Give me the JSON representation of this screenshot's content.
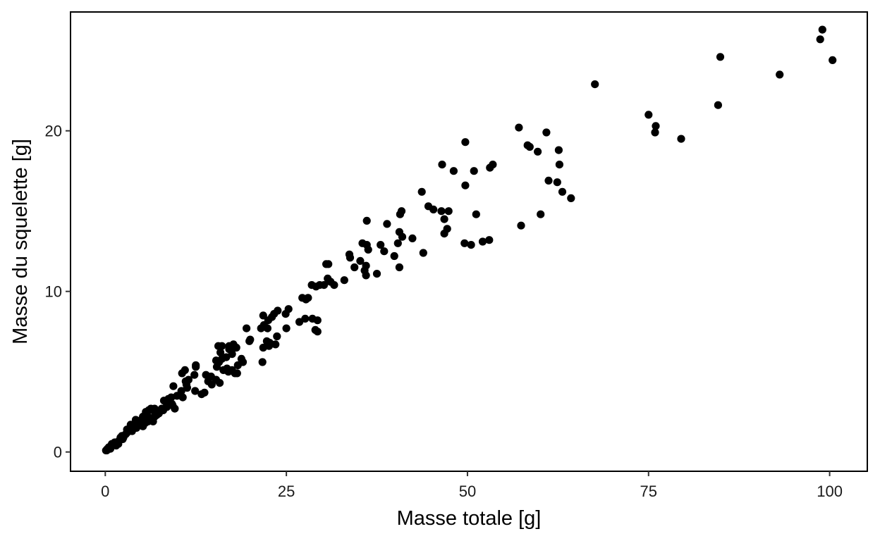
{
  "chart_data": {
    "type": "scatter",
    "title": "",
    "xlabel": "Masse totale [g]",
    "ylabel": "Masse du squelette [g]",
    "xlim": [
      -4.8,
      105.2
    ],
    "ylim": [
      -1.2,
      27.4
    ],
    "xticks": [
      0,
      25,
      50,
      75,
      100
    ],
    "yticks": [
      0,
      10,
      20
    ],
    "xtick_labels": [
      "0",
      "25",
      "50",
      "75",
      "100"
    ],
    "ytick_labels": [
      "0",
      "10",
      "20"
    ],
    "grid": false,
    "legend": "none",
    "point_color": "#000000",
    "points": [
      [
        99.0,
        26.3
      ],
      [
        98.7,
        25.7
      ],
      [
        100.4,
        24.4
      ],
      [
        84.9,
        24.6
      ],
      [
        93.1,
        23.5
      ],
      [
        84.6,
        21.6
      ],
      [
        67.6,
        22.9
      ],
      [
        75.0,
        21.0
      ],
      [
        76.0,
        20.3
      ],
      [
        75.9,
        19.9
      ],
      [
        79.5,
        19.5
      ],
      [
        57.1,
        20.2
      ],
      [
        60.9,
        19.9
      ],
      [
        58.3,
        19.1
      ],
      [
        58.6,
        19.0
      ],
      [
        59.7,
        18.7
      ],
      [
        62.6,
        18.8
      ],
      [
        62.7,
        17.9
      ],
      [
        61.2,
        16.9
      ],
      [
        62.4,
        16.8
      ],
      [
        63.1,
        16.2
      ],
      [
        64.3,
        15.8
      ],
      [
        60.1,
        14.8
      ],
      [
        57.4,
        14.1
      ],
      [
        49.7,
        19.3
      ],
      [
        46.5,
        17.9
      ],
      [
        48.1,
        17.5
      ],
      [
        50.9,
        17.5
      ],
      [
        53.1,
        17.7
      ],
      [
        53.5,
        17.9
      ],
      [
        49.7,
        16.6
      ],
      [
        43.7,
        16.2
      ],
      [
        44.6,
        15.3
      ],
      [
        45.3,
        15.1
      ],
      [
        46.4,
        15.0
      ],
      [
        47.4,
        15.0
      ],
      [
        51.2,
        14.8
      ],
      [
        46.8,
        14.5
      ],
      [
        47.2,
        13.9
      ],
      [
        46.8,
        13.6
      ],
      [
        49.6,
        13.0
      ],
      [
        50.5,
        12.9
      ],
      [
        52.1,
        13.1
      ],
      [
        53.0,
        13.2
      ],
      [
        43.9,
        12.4
      ],
      [
        40.9,
        15.0
      ],
      [
        40.7,
        14.8
      ],
      [
        38.9,
        14.2
      ],
      [
        40.6,
        13.7
      ],
      [
        41.0,
        13.4
      ],
      [
        40.4,
        13.0
      ],
      [
        42.4,
        13.3
      ],
      [
        40.6,
        11.5
      ],
      [
        39.9,
        12.2
      ],
      [
        38.0,
        12.9
      ],
      [
        38.5,
        12.5
      ],
      [
        36.1,
        14.4
      ],
      [
        35.5,
        13.0
      ],
      [
        36.1,
        12.9
      ],
      [
        36.3,
        12.6
      ],
      [
        35.2,
        11.9
      ],
      [
        34.4,
        11.5
      ],
      [
        36.0,
        11.6
      ],
      [
        35.8,
        11.3
      ],
      [
        36.0,
        11.0
      ],
      [
        37.5,
        11.1
      ],
      [
        33.7,
        12.3
      ],
      [
        33.8,
        12.1
      ],
      [
        33.0,
        10.7
      ],
      [
        30.5,
        11.7
      ],
      [
        30.8,
        11.7
      ],
      [
        30.7,
        10.8
      ],
      [
        30.2,
        10.4
      ],
      [
        31.1,
        10.6
      ],
      [
        31.6,
        10.4
      ],
      [
        29.6,
        10.4
      ],
      [
        29.1,
        10.3
      ],
      [
        28.5,
        10.4
      ],
      [
        28.0,
        9.6
      ],
      [
        27.7,
        9.5
      ],
      [
        27.2,
        9.6
      ],
      [
        24.9,
        8.6
      ],
      [
        25.3,
        8.9
      ],
      [
        23.8,
        8.8
      ],
      [
        23.0,
        8.4
      ],
      [
        22.5,
        8.2
      ],
      [
        21.9,
        7.9
      ],
      [
        21.5,
        7.7
      ],
      [
        22.4,
        7.7
      ],
      [
        23.3,
        8.6
      ],
      [
        21.8,
        8.5
      ],
      [
        27.6,
        8.3
      ],
      [
        26.8,
        8.1
      ],
      [
        28.6,
        8.3
      ],
      [
        29.3,
        8.2
      ],
      [
        29.0,
        7.6
      ],
      [
        29.3,
        7.5
      ],
      [
        25.0,
        7.7
      ],
      [
        23.7,
        7.2
      ],
      [
        22.3,
        6.9
      ],
      [
        22.7,
        6.8
      ],
      [
        21.8,
        6.5
      ],
      [
        22.6,
        6.6
      ],
      [
        23.5,
        6.7
      ],
      [
        21.7,
        5.6
      ],
      [
        19.5,
        7.7
      ],
      [
        20.0,
        7.0
      ],
      [
        19.9,
        6.9
      ],
      [
        18.1,
        6.5
      ],
      [
        17.6,
        6.6
      ],
      [
        17.1,
        6.6
      ],
      [
        17.7,
        6.7
      ],
      [
        17.1,
        6.4
      ],
      [
        18.0,
        6.5
      ],
      [
        17.5,
        6.1
      ],
      [
        16.1,
        6.6
      ],
      [
        15.6,
        6.6
      ],
      [
        15.9,
        6.2
      ],
      [
        16.7,
        5.9
      ],
      [
        16.1,
        5.8
      ],
      [
        15.7,
        5.6
      ],
      [
        15.3,
        5.7
      ],
      [
        15.4,
        5.3
      ],
      [
        16.3,
        5.1
      ],
      [
        17.0,
        5.0
      ],
      [
        17.5,
        5.1
      ],
      [
        17.9,
        4.9
      ],
      [
        18.3,
        5.4
      ],
      [
        18.8,
        5.8
      ],
      [
        19.0,
        5.6
      ],
      [
        18.2,
        4.9
      ],
      [
        16.8,
        5.2
      ],
      [
        12.5,
        5.4
      ],
      [
        12.5,
        5.3
      ],
      [
        11.0,
        5.1
      ],
      [
        10.6,
        4.9
      ],
      [
        12.3,
        4.8
      ],
      [
        11.5,
        4.5
      ],
      [
        11.1,
        4.4
      ],
      [
        13.9,
        4.8
      ],
      [
        14.6,
        4.7
      ],
      [
        14.2,
        4.4
      ],
      [
        15.3,
        4.5
      ],
      [
        14.7,
        4.2
      ],
      [
        15.8,
        4.3
      ],
      [
        12.4,
        3.8
      ],
      [
        13.3,
        3.6
      ],
      [
        13.7,
        3.7
      ],
      [
        10.5,
        3.8
      ],
      [
        11.3,
        4.0
      ],
      [
        9.9,
        3.5
      ],
      [
        10.7,
        3.4
      ],
      [
        11.2,
        4.2
      ],
      [
        9.4,
        4.1
      ],
      [
        9.1,
        3.4
      ],
      [
        8.7,
        3.3
      ],
      [
        8.1,
        3.2
      ],
      [
        8.5,
        3.0
      ],
      [
        9.2,
        3.0
      ],
      [
        9.3,
        2.9
      ],
      [
        9.6,
        2.7
      ],
      [
        8.5,
        2.8
      ],
      [
        7.8,
        2.7
      ],
      [
        8.0,
        2.6
      ],
      [
        7.5,
        2.5
      ],
      [
        7.4,
        2.4
      ],
      [
        7.1,
        2.3
      ],
      [
        6.9,
        2.4
      ],
      [
        6.8,
        2.2
      ],
      [
        6.6,
        2.6
      ],
      [
        6.3,
        2.7
      ],
      [
        6.8,
        2.7
      ],
      [
        6.0,
        2.6
      ],
      [
        5.6,
        2.5
      ],
      [
        5.9,
        2.2
      ],
      [
        6.2,
        2.1
      ],
      [
        6.6,
        1.9
      ],
      [
        5.9,
        1.9
      ],
      [
        5.5,
        2.1
      ],
      [
        5.2,
        2.2
      ],
      [
        5.0,
        2.0
      ],
      [
        4.8,
        1.8
      ],
      [
        4.5,
        1.7
      ],
      [
        5.5,
        1.8
      ],
      [
        5.2,
        1.6
      ],
      [
        4.2,
        2.0
      ],
      [
        4.1,
        1.8
      ],
      [
        3.9,
        1.5
      ],
      [
        3.5,
        1.7
      ],
      [
        3.3,
        1.4
      ],
      [
        3.0,
        1.4
      ],
      [
        4.3,
        1.5
      ],
      [
        3.7,
        1.3
      ],
      [
        3.0,
        1.2
      ],
      [
        2.8,
        1.1
      ],
      [
        2.5,
        0.9
      ],
      [
        2.3,
        1.0
      ],
      [
        2.1,
        0.9
      ],
      [
        1.9,
        0.7
      ],
      [
        2.4,
        0.8
      ],
      [
        1.6,
        0.6
      ],
      [
        1.3,
        0.6
      ],
      [
        1.2,
        0.5
      ],
      [
        1.0,
        0.4
      ],
      [
        0.9,
        0.5
      ],
      [
        0.6,
        0.3
      ],
      [
        0.4,
        0.2
      ],
      [
        0.3,
        0.2
      ],
      [
        0.2,
        0.1
      ],
      [
        0.1,
        0.1
      ],
      [
        0.5,
        0.3
      ],
      [
        0.7,
        0.2
      ],
      [
        1.5,
        0.4
      ],
      [
        1.8,
        0.5
      ]
    ]
  }
}
